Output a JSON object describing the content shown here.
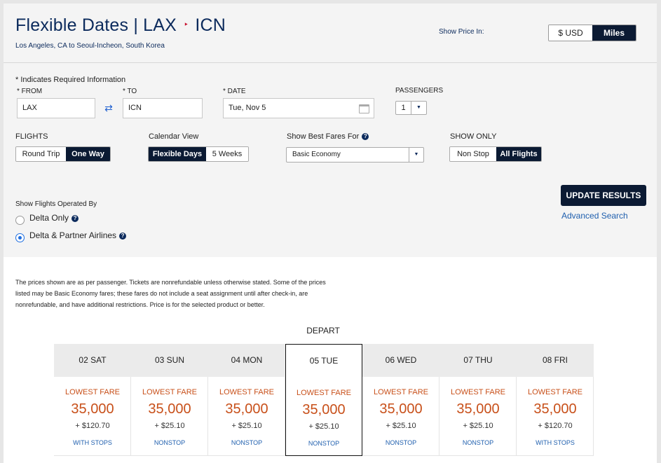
{
  "header": {
    "title_prefix": "Flexible Dates | LAX",
    "title_arrow": "‣",
    "title_dest": "ICN",
    "subtitle": "Los Angeles, CA to Seoul-Incheon, South Korea",
    "show_price_label": "Show Price In:",
    "price_options": [
      "$ USD",
      "Miles"
    ],
    "price_selected": "Miles"
  },
  "form": {
    "required_note": "* Indicates Required Information",
    "from_label": "* FROM",
    "from_value": "LAX",
    "to_label": "* TO",
    "to_value": "ICN",
    "date_label": "* DATE",
    "date_value": "Tue, Nov 5",
    "passengers_label": "PASSENGERS",
    "passengers_value": "1",
    "flights_label": "FLIGHTS",
    "flights_options": [
      "Round Trip",
      "One Way"
    ],
    "flights_selected": "One Way",
    "calendar_label": "Calendar View",
    "calendar_options": [
      "Flexible Days",
      "5 Weeks"
    ],
    "calendar_selected": "Flexible Days",
    "best_fares_label": "Show Best Fares For",
    "best_fares_value": "Basic Economy",
    "show_only_label": "SHOW ONLY",
    "show_only_options": [
      "Non Stop",
      "All Flights"
    ],
    "show_only_selected": "All Flights",
    "operated_label": "Show Flights Operated By",
    "operated_options": [
      "Delta Only",
      "Delta & Partner Airlines"
    ],
    "operated_selected": "Delta & Partner Airlines",
    "update_button": "UPDATE RESULTS",
    "advanced_search": "Advanced Search",
    "help_glyph": "?"
  },
  "results": {
    "disclaimer": "The prices shown are as per passenger. Tickets are nonrefundable unless otherwise stated. Some of the prices listed may be Basic Economy fares; these fares do not include a seat assignment until after check-in, are nonrefundable, and have additional restrictions. Price is for the selected product or better.",
    "depart_label": "DEPART",
    "days": [
      {
        "date": "02 SAT",
        "fare_label": "LOWEST FARE",
        "miles": "35,000",
        "tax": "+ $120.70",
        "stops": "WITH STOPS",
        "selected": false
      },
      {
        "date": "03 SUN",
        "fare_label": "LOWEST FARE",
        "miles": "35,000",
        "tax": "+ $25.10",
        "stops": "NONSTOP",
        "selected": false
      },
      {
        "date": "04 MON",
        "fare_label": "LOWEST FARE",
        "miles": "35,000",
        "tax": "+ $25.10",
        "stops": "NONSTOP",
        "selected": false
      },
      {
        "date": "05 TUE",
        "fare_label": "LOWEST FARE",
        "miles": "35,000",
        "tax": "+ $25.10",
        "stops": "NONSTOP",
        "selected": true
      },
      {
        "date": "06 WED",
        "fare_label": "LOWEST FARE",
        "miles": "35,000",
        "tax": "+ $25.10",
        "stops": "NONSTOP",
        "selected": false
      },
      {
        "date": "07 THU",
        "fare_label": "LOWEST FARE",
        "miles": "35,000",
        "tax": "+ $25.10",
        "stops": "NONSTOP",
        "selected": false
      },
      {
        "date": "08 FRI",
        "fare_label": "LOWEST FARE",
        "miles": "35,000",
        "tax": "+ $120.70",
        "stops": "WITH STOPS",
        "selected": false
      }
    ]
  },
  "colors": {
    "brand_navy": "#0b1a33",
    "title_navy": "#0b2a5c",
    "fare_orange": "#c8501a",
    "link_blue": "#1f5fae",
    "arrow_red": "#c8102e"
  }
}
